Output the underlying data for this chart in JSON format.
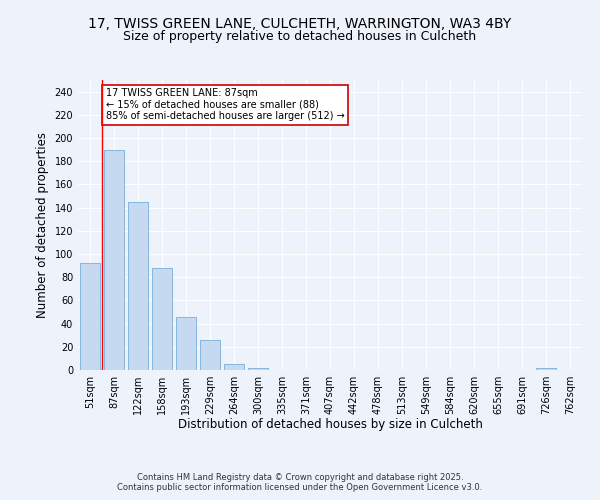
{
  "title": "17, TWISS GREEN LANE, CULCHETH, WARRINGTON, WA3 4BY",
  "subtitle": "Size of property relative to detached houses in Culcheth",
  "xlabel": "Distribution of detached houses by size in Culcheth",
  "ylabel": "Number of detached properties",
  "bar_color": "#c5d9f1",
  "bar_edge_color": "#7aadda",
  "categories": [
    "51sqm",
    "87sqm",
    "122sqm",
    "158sqm",
    "193sqm",
    "229sqm",
    "264sqm",
    "300sqm",
    "335sqm",
    "371sqm",
    "407sqm",
    "442sqm",
    "478sqm",
    "513sqm",
    "549sqm",
    "584sqm",
    "620sqm",
    "655sqm",
    "691sqm",
    "726sqm",
    "762sqm"
  ],
  "values": [
    92,
    190,
    145,
    88,
    46,
    26,
    5,
    2,
    0,
    0,
    0,
    0,
    0,
    0,
    0,
    0,
    0,
    0,
    0,
    2,
    0
  ],
  "ylim": [
    0,
    250
  ],
  "yticks": [
    0,
    20,
    40,
    60,
    80,
    100,
    120,
    140,
    160,
    180,
    200,
    220,
    240
  ],
  "red_line_index": 1,
  "annotation_text": "17 TWISS GREEN LANE: 87sqm\n← 15% of detached houses are smaller (88)\n85% of semi-detached houses are larger (512) →",
  "annotation_box_color": "#ffffff",
  "annotation_border_color": "#cc0000",
  "footer_line1": "Contains HM Land Registry data © Crown copyright and database right 2025.",
  "footer_line2": "Contains public sector information licensed under the Open Government Licence v3.0.",
  "bg_color": "#edf2fb",
  "plot_bg_color": "#edf2fb",
  "grid_color": "#ffffff",
  "title_fontsize": 10,
  "subtitle_fontsize": 9,
  "tick_fontsize": 7,
  "ylabel_fontsize": 8.5,
  "xlabel_fontsize": 8.5,
  "footer_fontsize": 6,
  "annot_fontsize": 7
}
